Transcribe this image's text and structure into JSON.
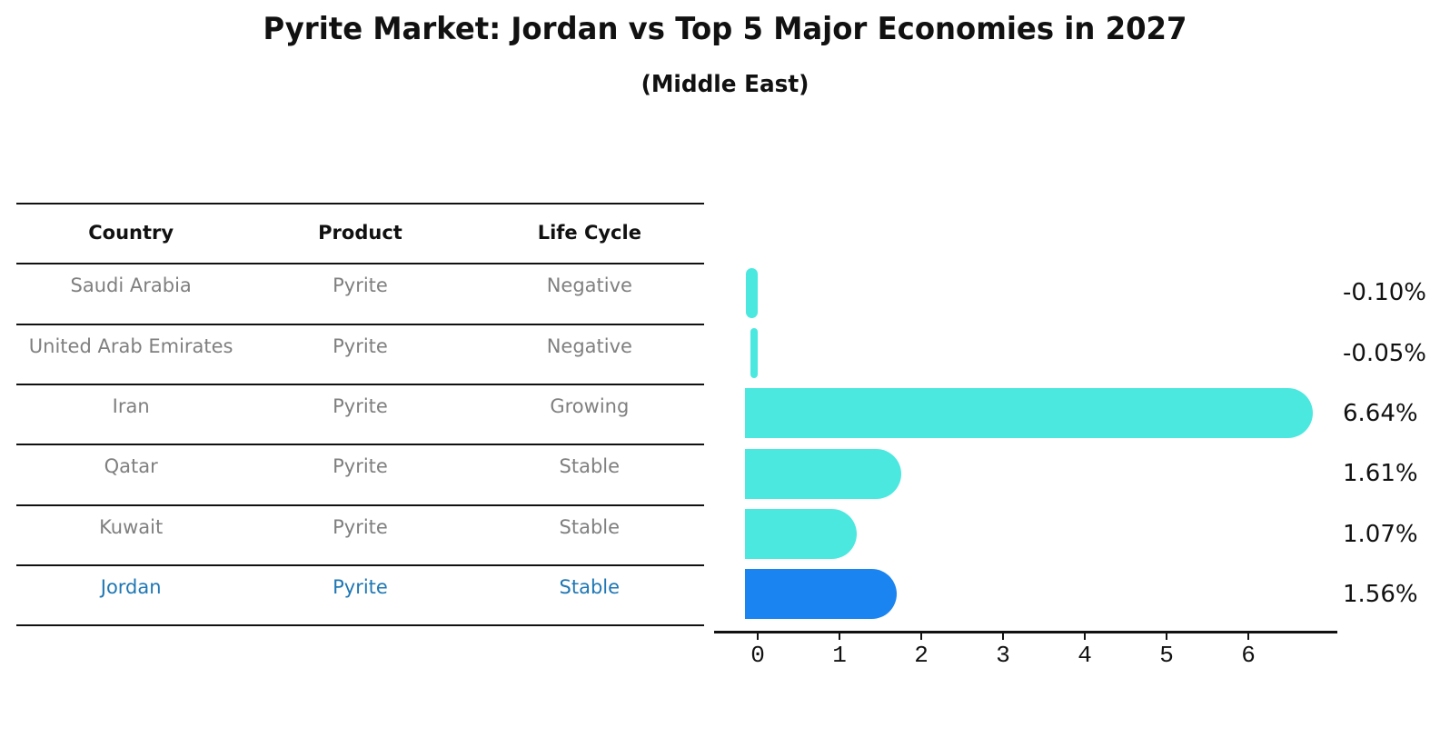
{
  "title": "Pyrite Market: Jordan vs Top 5 Major Economies in 2027",
  "subtitle": "(Middle East)",
  "table": {
    "columns": [
      "Country",
      "Product",
      "Life Cycle"
    ],
    "rows": [
      {
        "country": "Saudi Arabia",
        "product": "Pyrite",
        "life_cycle": "Negative",
        "highlight": false
      },
      {
        "country": "United Arab Emirates",
        "product": "Pyrite",
        "life_cycle": "Negative",
        "highlight": false
      },
      {
        "country": "Iran",
        "product": "Pyrite",
        "life_cycle": "Growing",
        "highlight": false
      },
      {
        "country": "Qatar",
        "product": "Pyrite",
        "life_cycle": "Stable",
        "highlight": false
      },
      {
        "country": "Kuwait",
        "product": "Pyrite",
        "life_cycle": "Stable",
        "highlight": false
      },
      {
        "country": "Jordan",
        "product": "Pyrite",
        "life_cycle": "Stable",
        "highlight": true
      }
    ]
  },
  "chart_data": {
    "type": "bar",
    "orientation": "horizontal",
    "title": "Pyrite Market: Jordan vs Top 5 Major Economies in 2027",
    "subtitle": "(Middle East)",
    "categories": [
      "Saudi Arabia",
      "United Arab Emirates",
      "Iran",
      "Qatar",
      "Kuwait",
      "Jordan"
    ],
    "values": [
      -0.1,
      -0.05,
      6.64,
      1.61,
      1.07,
      1.56
    ],
    "value_labels": [
      "-0.10%",
      "-0.05%",
      "6.64%",
      "1.61%",
      "1.07%",
      "1.56%"
    ],
    "highlight_index": 5,
    "x_ticks": [
      "0",
      "1",
      "2",
      "3",
      "4",
      "5",
      "6"
    ],
    "xlim": [
      -0.55,
      7.1
    ],
    "grid": false,
    "legend": false,
    "colors": {
      "bar": "#4BE8E0",
      "highlight_bar": "#1A84F0",
      "highlight_text": "#1f77b4",
      "row_text": "#7f7f7f",
      "text": "#111111"
    }
  }
}
